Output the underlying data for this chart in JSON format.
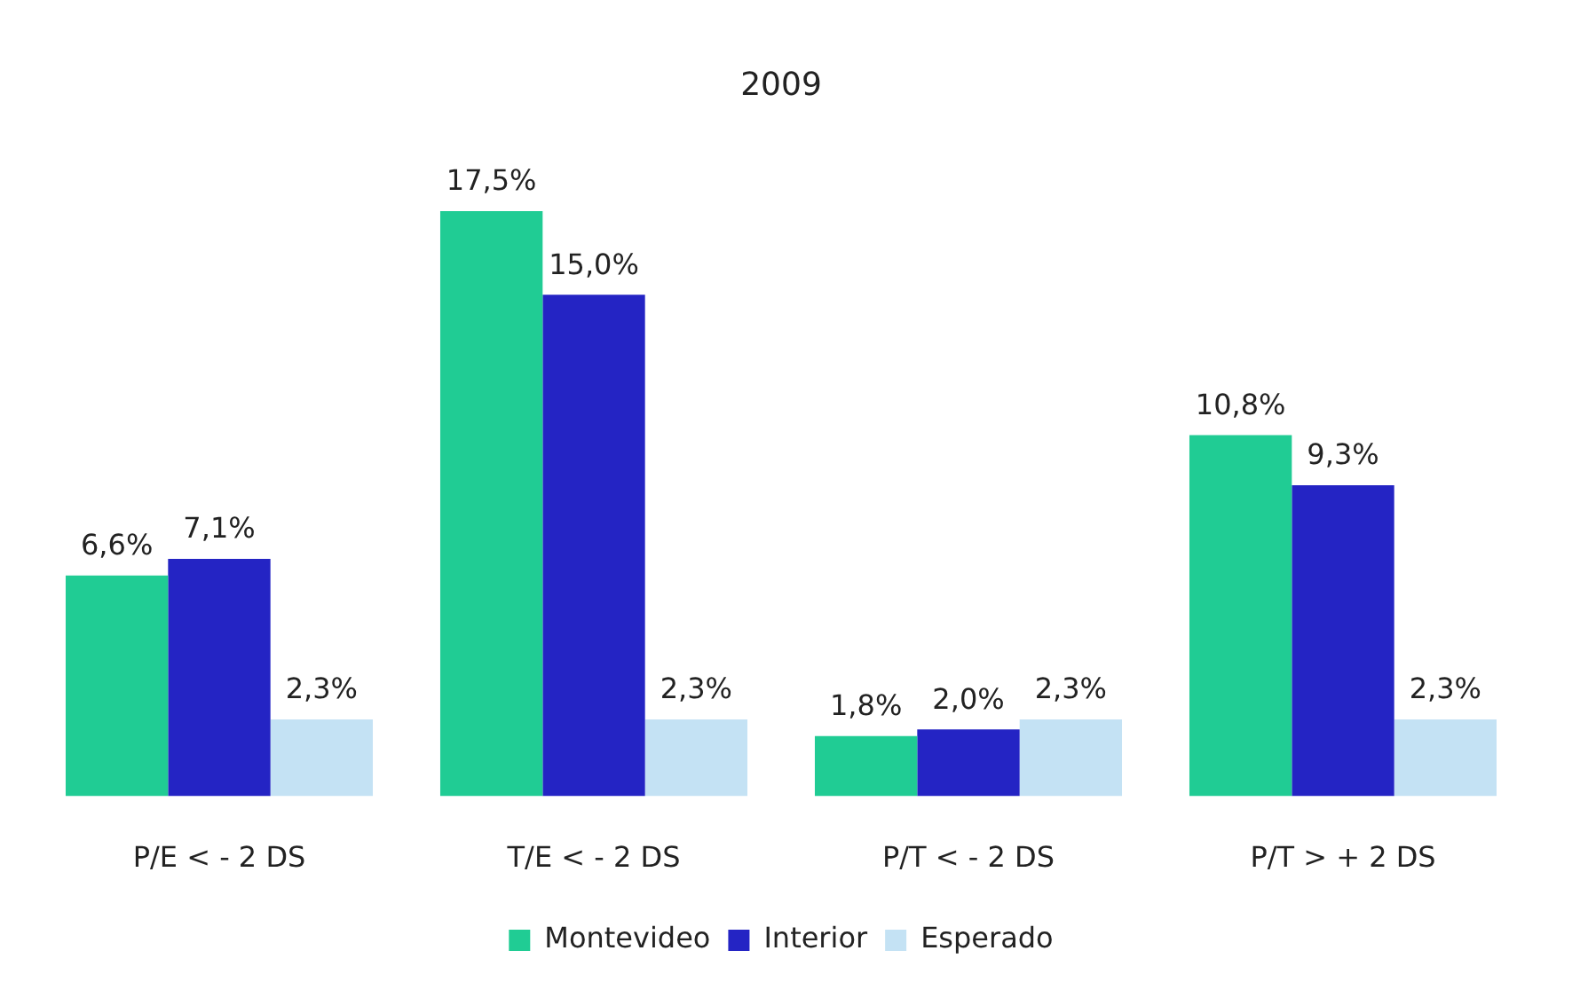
{
  "chart_data": {
    "type": "bar",
    "title": "2009",
    "categories": [
      "P/E < - 2 DS",
      "T/E < - 2 DS",
      "P/T < - 2 DS",
      "P/T > + 2 DS"
    ],
    "series": [
      {
        "name": "Montevideo",
        "color": "#20cc94",
        "values": [
          6.6,
          17.5,
          1.8,
          10.8
        ],
        "value_labels": [
          "6,6%",
          "17,5%",
          "1,8%",
          "10,8%"
        ]
      },
      {
        "name": "Interior",
        "color": "#2424c4",
        "values": [
          7.1,
          15.0,
          2.0,
          9.3
        ],
        "value_labels": [
          "7,1%",
          "15,0%",
          "2,0%",
          "9,3%"
        ]
      },
      {
        "name": "Esperado",
        "color": "#c4e2f4",
        "values": [
          2.3,
          2.3,
          2.3,
          2.3
        ],
        "value_labels": [
          "2,3%",
          "2,3%",
          "2,3%",
          "2,3%"
        ]
      }
    ],
    "legend": "bottom"
  }
}
